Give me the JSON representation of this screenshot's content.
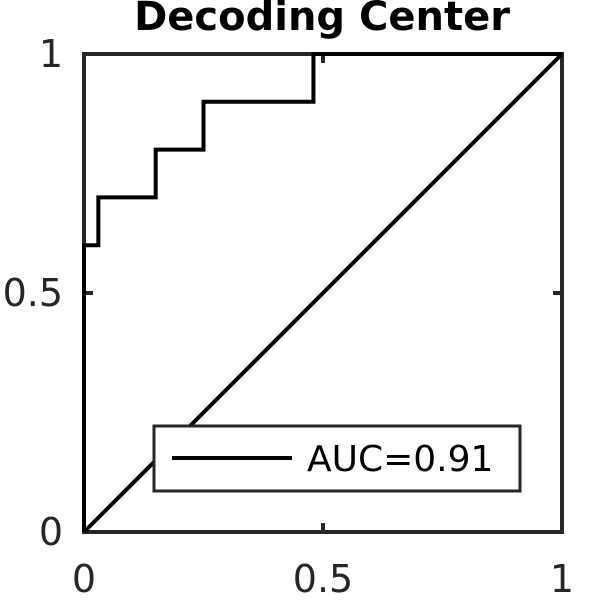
{
  "chart_data": {
    "type": "line",
    "title": "Decoding Center",
    "xlabel": "",
    "ylabel": "",
    "xlim": [
      0,
      1
    ],
    "ylim": [
      0,
      1
    ],
    "x_ticks": [
      0,
      0.5,
      1
    ],
    "y_ticks": [
      0,
      0.5,
      1
    ],
    "x_tick_labels": [
      "0",
      "0.5",
      "1"
    ],
    "y_tick_labels": [
      "0",
      "0.5",
      "1"
    ],
    "grid": false,
    "legend_position": "bottom-right",
    "series": [
      {
        "name": "AUC=0.91",
        "color": "#000000",
        "x": [
          0,
          0,
          0.03,
          0.03,
          0.15,
          0.15,
          0.25,
          0.25,
          0.48,
          0.48,
          1
        ],
        "y": [
          0,
          0.6,
          0.6,
          0.7,
          0.7,
          0.8,
          0.8,
          0.9,
          0.9,
          1,
          1
        ]
      }
    ],
    "reference_line": {
      "x": [
        0,
        1
      ],
      "y": [
        0,
        1
      ],
      "color": "#000000"
    }
  }
}
